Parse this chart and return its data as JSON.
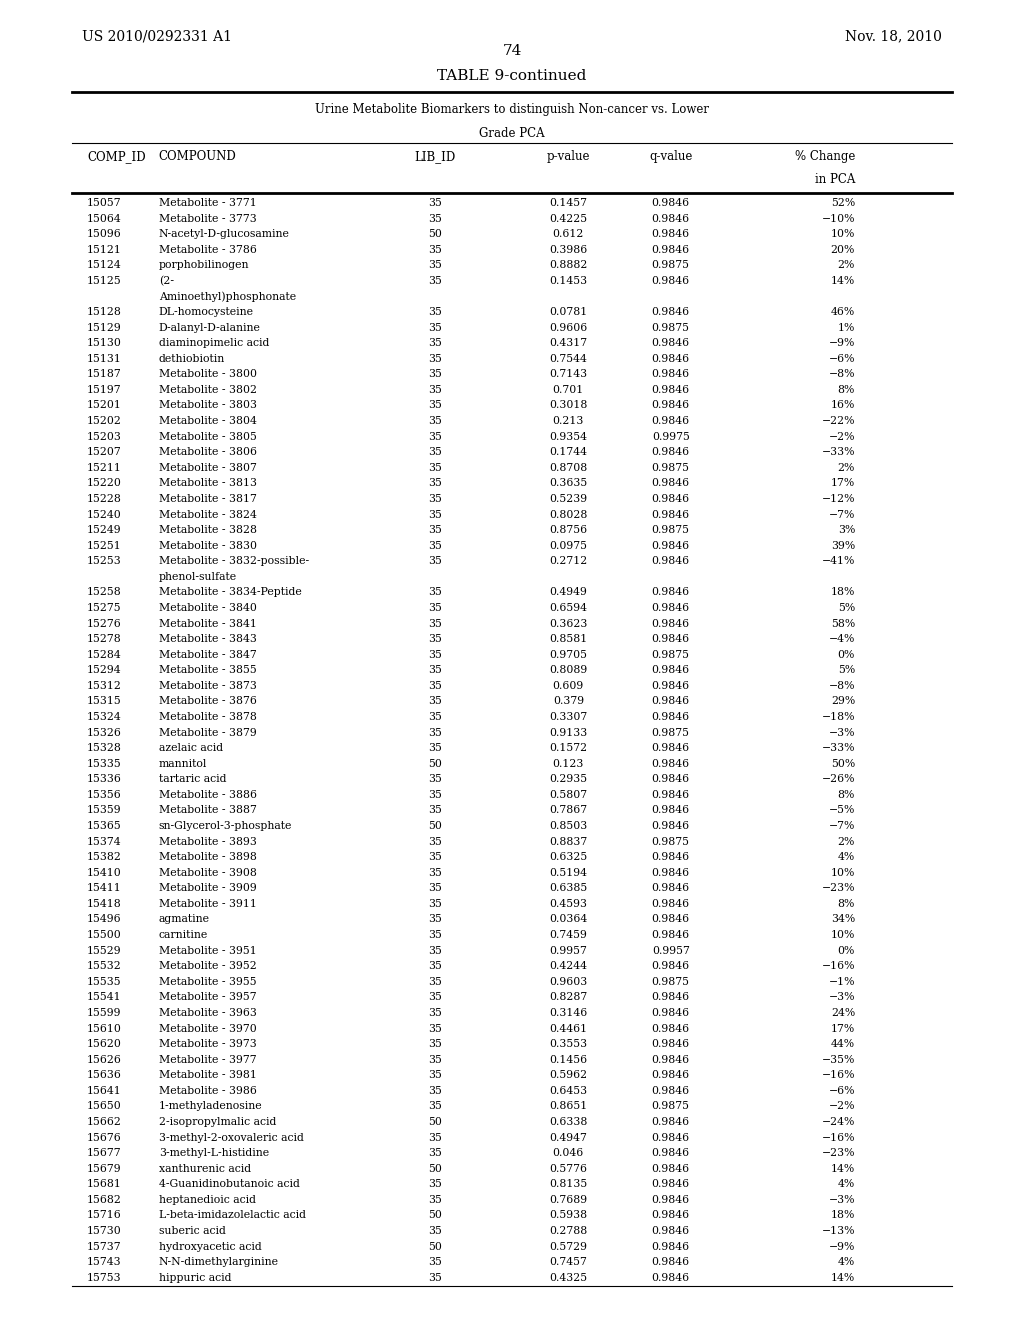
{
  "patent_number": "US 2010/0292331 A1",
  "date": "Nov. 18, 2010",
  "page_number": "74",
  "table_title": "TABLE 9-continued",
  "table_subtitle_line1": "Urine Metabolite Biomarkers to distinguish Non-cancer vs. Lower",
  "table_subtitle_line2": "Grade PCA",
  "col_headers": [
    "COMP_ID",
    "COMPOUND",
    "LIB_ID",
    "p-value",
    "q-value",
    "% Change",
    "in PCA"
  ],
  "rows": [
    [
      "15057",
      "Metabolite - 3771",
      "35",
      "0.1457",
      "0.9846",
      "52%"
    ],
    [
      "15064",
      "Metabolite - 3773",
      "35",
      "0.4225",
      "0.9846",
      "−10%"
    ],
    [
      "15096",
      "N-acetyl-D-glucosamine",
      "50",
      "0.612",
      "0.9846",
      "10%"
    ],
    [
      "15121",
      "Metabolite - 3786",
      "35",
      "0.3986",
      "0.9846",
      "20%"
    ],
    [
      "15124",
      "porphobilinogen",
      "35",
      "0.8882",
      "0.9875",
      "2%"
    ],
    [
      "15125",
      "(2-|Aminoethyl)phosphonate",
      "35",
      "0.1453",
      "0.9846",
      "14%"
    ],
    [
      "15128",
      "DL-homocysteine",
      "35",
      "0.0781",
      "0.9846",
      "46%"
    ],
    [
      "15129",
      "D-alanyl-D-alanine",
      "35",
      "0.9606",
      "0.9875",
      "1%"
    ],
    [
      "15130",
      "diaminopimelic acid",
      "35",
      "0.4317",
      "0.9846",
      "−9%"
    ],
    [
      "15131",
      "dethiobiotin",
      "35",
      "0.7544",
      "0.9846",
      "−6%"
    ],
    [
      "15187",
      "Metabolite - 3800",
      "35",
      "0.7143",
      "0.9846",
      "−8%"
    ],
    [
      "15197",
      "Metabolite - 3802",
      "35",
      "0.701",
      "0.9846",
      "8%"
    ],
    [
      "15201",
      "Metabolite - 3803",
      "35",
      "0.3018",
      "0.9846",
      "16%"
    ],
    [
      "15202",
      "Metabolite - 3804",
      "35",
      "0.213",
      "0.9846",
      "−22%"
    ],
    [
      "15203",
      "Metabolite - 3805",
      "35",
      "0.9354",
      "0.9975",
      "−2%"
    ],
    [
      "15207",
      "Metabolite - 3806",
      "35",
      "0.1744",
      "0.9846",
      "−33%"
    ],
    [
      "15211",
      "Metabolite - 3807",
      "35",
      "0.8708",
      "0.9875",
      "2%"
    ],
    [
      "15220",
      "Metabolite - 3813",
      "35",
      "0.3635",
      "0.9846",
      "17%"
    ],
    [
      "15228",
      "Metabolite - 3817",
      "35",
      "0.5239",
      "0.9846",
      "−12%"
    ],
    [
      "15240",
      "Metabolite - 3824",
      "35",
      "0.8028",
      "0.9846",
      "−7%"
    ],
    [
      "15249",
      "Metabolite - 3828",
      "35",
      "0.8756",
      "0.9875",
      "3%"
    ],
    [
      "15251",
      "Metabolite - 3830",
      "35",
      "0.0975",
      "0.9846",
      "39%"
    ],
    [
      "15253",
      "Metabolite - 3832-possible-|phenol-sulfate",
      "35",
      "0.2712",
      "0.9846",
      "−41%"
    ],
    [
      "15258",
      "Metabolite - 3834-Peptide",
      "35",
      "0.4949",
      "0.9846",
      "18%"
    ],
    [
      "15275",
      "Metabolite - 3840",
      "35",
      "0.6594",
      "0.9846",
      "5%"
    ],
    [
      "15276",
      "Metabolite - 3841",
      "35",
      "0.3623",
      "0.9846",
      "58%"
    ],
    [
      "15278",
      "Metabolite - 3843",
      "35",
      "0.8581",
      "0.9846",
      "−4%"
    ],
    [
      "15284",
      "Metabolite - 3847",
      "35",
      "0.9705",
      "0.9875",
      "0%"
    ],
    [
      "15294",
      "Metabolite - 3855",
      "35",
      "0.8089",
      "0.9846",
      "5%"
    ],
    [
      "15312",
      "Metabolite - 3873",
      "35",
      "0.609",
      "0.9846",
      "−8%"
    ],
    [
      "15315",
      "Metabolite - 3876",
      "35",
      "0.379",
      "0.9846",
      "29%"
    ],
    [
      "15324",
      "Metabolite - 3878",
      "35",
      "0.3307",
      "0.9846",
      "−18%"
    ],
    [
      "15326",
      "Metabolite - 3879",
      "35",
      "0.9133",
      "0.9875",
      "−3%"
    ],
    [
      "15328",
      "azelaic acid",
      "35",
      "0.1572",
      "0.9846",
      "−33%"
    ],
    [
      "15335",
      "mannitol",
      "50",
      "0.123",
      "0.9846",
      "50%"
    ],
    [
      "15336",
      "tartaric acid",
      "35",
      "0.2935",
      "0.9846",
      "−26%"
    ],
    [
      "15356",
      "Metabolite - 3886",
      "35",
      "0.5807",
      "0.9846",
      "8%"
    ],
    [
      "15359",
      "Metabolite - 3887",
      "35",
      "0.7867",
      "0.9846",
      "−5%"
    ],
    [
      "15365",
      "sn-Glycerol-3-phosphate",
      "50",
      "0.8503",
      "0.9846",
      "−7%"
    ],
    [
      "15374",
      "Metabolite - 3893",
      "35",
      "0.8837",
      "0.9875",
      "2%"
    ],
    [
      "15382",
      "Metabolite - 3898",
      "35",
      "0.6325",
      "0.9846",
      "4%"
    ],
    [
      "15410",
      "Metabolite - 3908",
      "35",
      "0.5194",
      "0.9846",
      "10%"
    ],
    [
      "15411",
      "Metabolite - 3909",
      "35",
      "0.6385",
      "0.9846",
      "−23%"
    ],
    [
      "15418",
      "Metabolite - 3911",
      "35",
      "0.4593",
      "0.9846",
      "8%"
    ],
    [
      "15496",
      "agmatine",
      "35",
      "0.0364",
      "0.9846",
      "34%"
    ],
    [
      "15500",
      "carnitine",
      "35",
      "0.7459",
      "0.9846",
      "10%"
    ],
    [
      "15529",
      "Metabolite - 3951",
      "35",
      "0.9957",
      "0.9957",
      "0%"
    ],
    [
      "15532",
      "Metabolite - 3952",
      "35",
      "0.4244",
      "0.9846",
      "−16%"
    ],
    [
      "15535",
      "Metabolite - 3955",
      "35",
      "0.9603",
      "0.9875",
      "−1%"
    ],
    [
      "15541",
      "Metabolite - 3957",
      "35",
      "0.8287",
      "0.9846",
      "−3%"
    ],
    [
      "15599",
      "Metabolite - 3963",
      "35",
      "0.3146",
      "0.9846",
      "24%"
    ],
    [
      "15610",
      "Metabolite - 3970",
      "35",
      "0.4461",
      "0.9846",
      "17%"
    ],
    [
      "15620",
      "Metabolite - 3973",
      "35",
      "0.3553",
      "0.9846",
      "44%"
    ],
    [
      "15626",
      "Metabolite - 3977",
      "35",
      "0.1456",
      "0.9846",
      "−35%"
    ],
    [
      "15636",
      "Metabolite - 3981",
      "35",
      "0.5962",
      "0.9846",
      "−16%"
    ],
    [
      "15641",
      "Metabolite - 3986",
      "35",
      "0.6453",
      "0.9846",
      "−6%"
    ],
    [
      "15650",
      "1-methyladenosine",
      "35",
      "0.8651",
      "0.9875",
      "−2%"
    ],
    [
      "15662",
      "2-isopropylmalic acid",
      "50",
      "0.6338",
      "0.9846",
      "−24%"
    ],
    [
      "15676",
      "3-methyl-2-oxovaleric acid",
      "35",
      "0.4947",
      "0.9846",
      "−16%"
    ],
    [
      "15677",
      "3-methyl-L-histidine",
      "35",
      "0.046",
      "0.9846",
      "−23%"
    ],
    [
      "15679",
      "xanthurenic acid",
      "50",
      "0.5776",
      "0.9846",
      "14%"
    ],
    [
      "15681",
      "4-Guanidinobutanoic acid",
      "35",
      "0.8135",
      "0.9846",
      "4%"
    ],
    [
      "15682",
      "heptanedioic acid",
      "35",
      "0.7689",
      "0.9846",
      "−3%"
    ],
    [
      "15716",
      "L-beta-imidazolelactic acid",
      "50",
      "0.5938",
      "0.9846",
      "18%"
    ],
    [
      "15730",
      "suberic acid",
      "35",
      "0.2788",
      "0.9846",
      "−13%"
    ],
    [
      "15737",
      "hydroxyacetic acid",
      "50",
      "0.5729",
      "0.9846",
      "−9%"
    ],
    [
      "15743",
      "N-N-dimethylarginine",
      "35",
      "0.7457",
      "0.9846",
      "4%"
    ],
    [
      "15753",
      "hippuric acid",
      "35",
      "0.4325",
      "0.9846",
      "14%"
    ]
  ]
}
